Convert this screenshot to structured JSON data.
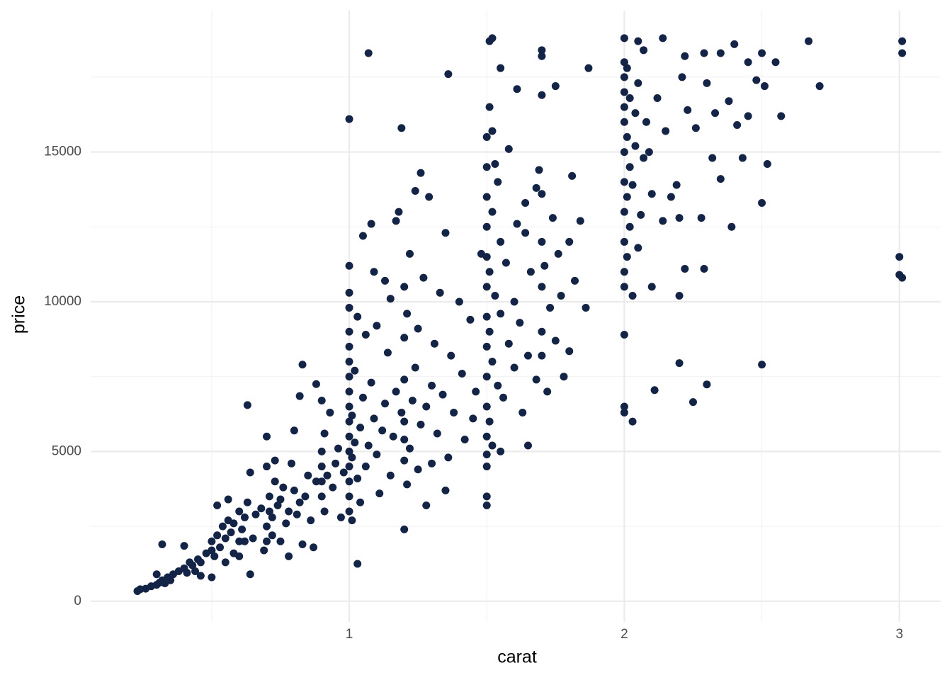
{
  "chart_data": {
    "type": "scatter",
    "x_label": "carat",
    "y_label": "price",
    "color": "#132447",
    "grid": true,
    "xlim": [
      0.06,
      3.15
    ],
    "ylim": [
      -690,
      19720
    ],
    "xticks": [
      1,
      2,
      3
    ],
    "xminorticks": [
      0.5,
      1.5,
      2.5
    ],
    "yticks": [
      0,
      5000,
      10000,
      15000
    ],
    "yminorticks": [
      2500,
      7500,
      12500,
      17500
    ],
    "x": [
      0.23,
      0.24,
      0.26,
      0.28,
      0.3,
      0.31,
      0.32,
      0.3,
      0.32,
      0.33,
      0.34,
      0.35,
      0.36,
      0.38,
      0.4,
      0.41,
      0.42,
      0.43,
      0.4,
      0.45,
      0.46,
      0.48,
      0.5,
      0.5,
      0.51,
      0.52,
      0.53,
      0.54,
      0.55,
      0.56,
      0.57,
      0.58,
      0.6,
      0.6,
      0.61,
      0.62,
      0.63,
      0.64,
      0.65,
      0.66,
      0.5,
      0.46,
      0.55,
      0.6,
      0.52,
      0.56,
      0.58,
      0.62,
      0.64,
      0.44,
      0.7,
      0.7,
      0.71,
      0.71,
      0.72,
      0.73,
      0.74,
      0.7,
      0.7,
      0.72,
      0.75,
      0.76,
      0.77,
      0.78,
      0.79,
      0.8,
      0.81,
      0.8,
      0.82,
      0.83,
      0.84,
      0.85,
      0.86,
      0.87,
      0.88,
      0.75,
      0.78,
      0.73,
      0.68,
      0.69,
      0.9,
      0.9,
      0.9,
      0.9,
      0.91,
      0.91,
      0.92,
      0.93,
      0.94,
      0.95,
      0.96,
      0.97,
      0.98,
      1.0,
      1.0,
      1.0,
      1.0,
      1.0,
      1.0,
      1.0,
      1.0,
      1.0,
      1.0,
      1.0,
      1.0,
      1.0,
      1.0,
      1.0,
      1.0,
      1.01,
      1.01,
      1.01,
      1.02,
      1.02,
      1.03,
      1.03,
      1.04,
      1.04,
      1.05,
      1.05,
      1.06,
      1.06,
      1.07,
      1.08,
      1.08,
      1.09,
      1.1,
      1.1,
      1.11,
      1.12,
      1.13,
      1.14,
      1.15,
      1.15,
      1.16,
      1.17,
      1.18,
      1.19,
      1.2,
      1.2,
      1.2,
      1.2,
      1.2,
      1.2,
      1.21,
      1.21,
      1.22,
      1.22,
      1.23,
      1.24,
      1.25,
      1.25,
      1.26,
      1.27,
      1.28,
      1.29,
      1.3,
      1.3,
      1.31,
      1.32,
      1.33,
      1.34,
      1.35,
      1.36,
      1.37,
      1.38,
      1.4,
      1.41,
      1.42,
      1.44,
      1.45,
      1.46,
      1.48,
      1.35,
      1.28,
      1.24,
      1.26,
      1.17,
      1.13,
      1.09,
      1.5,
      1.5,
      1.5,
      1.5,
      1.5,
      1.5,
      1.5,
      1.5,
      1.5,
      1.5,
      1.5,
      1.5,
      1.51,
      1.51,
      1.51,
      1.51,
      1.52,
      1.52,
      1.52,
      1.53,
      1.54,
      1.54,
      1.55,
      1.55,
      1.56,
      1.57,
      1.58,
      1.58,
      1.6,
      1.6,
      1.61,
      1.62,
      1.63,
      1.64,
      1.65,
      1.66,
      1.68,
      1.69,
      1.7,
      1.7,
      1.7,
      1.7,
      1.7,
      1.7,
      1.71,
      1.72,
      1.73,
      1.74,
      1.75,
      1.76,
      1.77,
      1.78,
      1.8,
      1.81,
      1.82,
      1.84,
      1.52,
      1.53,
      1.68,
      1.64,
      2.0,
      2.0,
      2.0,
      2.0,
      2.0,
      2.0,
      2.0,
      2.0,
      2.0,
      2.0,
      2.0,
      2.01,
      2.01,
      2.01,
      2.01,
      2.02,
      2.02,
      2.02,
      2.03,
      2.03,
      2.04,
      2.04,
      2.05,
      2.05,
      2.06,
      2.07,
      2.08,
      2.09,
      2.1,
      2.12,
      2.14,
      2.15,
      2.17,
      2.19,
      2.2,
      2.21,
      2.23,
      2.26,
      2.28,
      2.3,
      2.33,
      2.35,
      2.38,
      2.41,
      2.45,
      2.48,
      2.51,
      2.57,
      2.22,
      2.1,
      1.07,
      1.0,
      0.63,
      1.19,
      1.36,
      1.51,
      1.52,
      1.55,
      1.61,
      1.7,
      1.7,
      1.75,
      1.87,
      2.0,
      2.05,
      2.07,
      2.14,
      2.22,
      2.29,
      2.35,
      2.4,
      2.45,
      2.5,
      2.67,
      2.71,
      2.55,
      3.01,
      3.01,
      3.0,
      3.0,
      3.01,
      2.5,
      2.5,
      2.52,
      2.43,
      2.39,
      2.29,
      2.32,
      2.2,
      2.11,
      2.25,
      2.3,
      2.03,
      2.0,
      2.0,
      2.0,
      2.2,
      1.86,
      1.8,
      1.5,
      1.5,
      1.5,
      1.55,
      1.65,
      1.03,
      1.2,
      0.9,
      0.82,
      0.83,
      0.88
    ],
    "values": [
      340,
      400,
      420,
      500,
      550,
      620,
      700,
      900,
      1900,
      600,
      800,
      700,
      900,
      1000,
      1100,
      950,
      1300,
      1200,
      1850,
      1400,
      1300,
      1600,
      1700,
      2000,
      1500,
      2200,
      1800,
      2500,
      2100,
      2700,
      2300,
      2600,
      2000,
      3000,
      2400,
      2800,
      3300,
      4300,
      2100,
      2900,
      800,
      850,
      1300,
      1500,
      3200,
      3400,
      1600,
      2000,
      900,
      1000,
      2000,
      2500,
      3000,
      3500,
      2800,
      4000,
      3200,
      5500,
      4500,
      2200,
      3400,
      3800,
      2600,
      3000,
      4600,
      3700,
      2900,
      5700,
      3300,
      1900,
      3500,
      4200,
      2700,
      1800,
      4000,
      2000,
      1500,
      4700,
      3100,
      1700,
      3500,
      4000,
      4500,
      5000,
      5600,
      3000,
      4200,
      6300,
      3800,
      4600,
      5100,
      2800,
      4300,
      4000,
      4500,
      5000,
      5500,
      6000,
      6500,
      7000,
      7500,
      8000,
      8500,
      9000,
      9800,
      10300,
      11200,
      3500,
      3000,
      2700,
      4800,
      6200,
      5300,
      7700,
      4100,
      9500,
      5800,
      3300,
      6800,
      12200,
      4500,
      8900,
      5200,
      7300,
      12600,
      6100,
      4900,
      9200,
      3600,
      5700,
      6600,
      8300,
      10100,
      4200,
      5500,
      7000,
      13000,
      6300,
      4700,
      5400,
      6000,
      7400,
      8800,
      10500,
      3900,
      9600,
      5100,
      11600,
      6700,
      7800,
      4400,
      9100,
      5900,
      10800,
      6500,
      13500,
      7200,
      4600,
      8600,
      5600,
      10300,
      6900,
      12300,
      4800,
      8200,
      6300,
      10000,
      7600,
      5400,
      9400,
      6100,
      7000,
      11600,
      3700,
      3200,
      13700,
      14300,
      12700,
      10700,
      11000,
      4500,
      5500,
      6500,
      7500,
      8500,
      9500,
      10500,
      11500,
      12500,
      13500,
      14500,
      15500,
      16500,
      6000,
      9000,
      11000,
      8000,
      13000,
      5200,
      10200,
      7200,
      14000,
      9600,
      12000,
      6800,
      11300,
      8600,
      15100,
      10000,
      7800,
      12600,
      9300,
      6300,
      13300,
      8200,
      11000,
      7400,
      14400,
      9000,
      10500,
      12000,
      13600,
      16900,
      8200,
      11200,
      7000,
      9800,
      12800,
      8700,
      11600,
      10200,
      7500,
      12000,
      14200,
      10700,
      12700,
      15700,
      14600,
      13800,
      12300,
      10500,
      11000,
      12000,
      13000,
      14000,
      15000,
      16000,
      16500,
      17000,
      17500,
      18000,
      11500,
      13500,
      15500,
      17800,
      12500,
      14500,
      16800,
      10200,
      13900,
      15200,
      16300,
      11800,
      17300,
      12900,
      14800,
      16000,
      15000,
      13600,
      16800,
      12700,
      15700,
      13500,
      13900,
      12800,
      17500,
      16400,
      15800,
      12800,
      17300,
      16300,
      14100,
      16700,
      15900,
      16200,
      17400,
      17200,
      16200,
      11100,
      10500,
      18300,
      16100,
      6550,
      15800,
      17600,
      18700,
      18800,
      17800,
      17100,
      18400,
      18200,
      17200,
      17800,
      18800,
      18700,
      18400,
      18800,
      18200,
      18300,
      18300,
      18600,
      18000,
      18300,
      18700,
      17200,
      18000,
      18700,
      18300,
      11500,
      10900,
      10800,
      13300,
      7900,
      14600,
      14800,
      12500,
      11100,
      14800,
      7950,
      7050,
      6650,
      7240,
      6000,
      6300,
      6500,
      8900,
      10200,
      9800,
      8350,
      3200,
      3500,
      4900,
      5000,
      5200,
      1250,
      2400,
      6700,
      6850,
      7900,
      7250
    ]
  }
}
